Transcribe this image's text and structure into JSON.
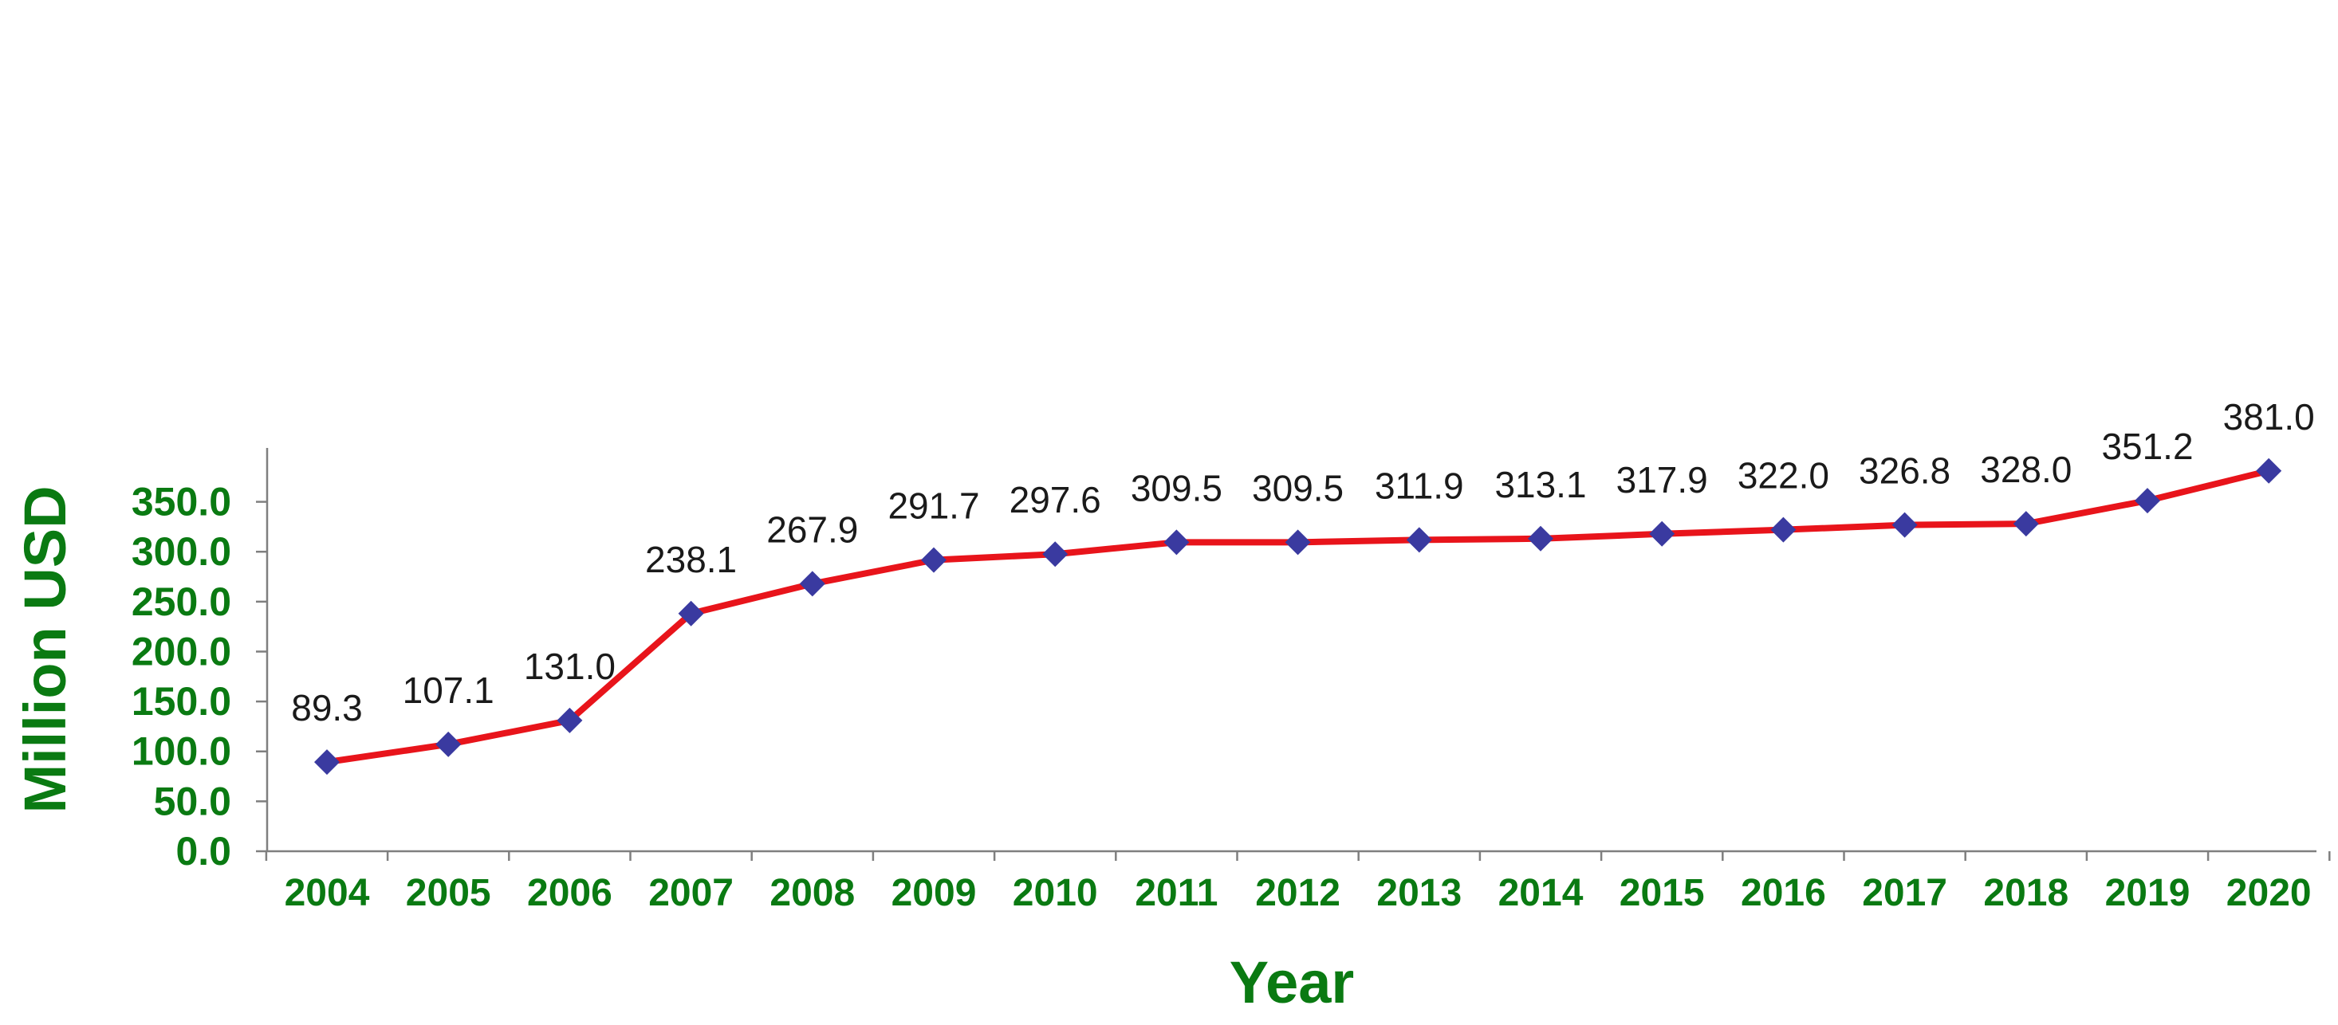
{
  "chart_data": {
    "type": "line",
    "title": "",
    "xlabel": "Year",
    "ylabel": "Million USD",
    "categories": [
      "2004",
      "2005",
      "2006",
      "2007",
      "2008",
      "2009",
      "2010",
      "2011",
      "2012",
      "2013",
      "2014",
      "2015",
      "2016",
      "2017",
      "2018",
      "2019",
      "2020"
    ],
    "series": [
      {
        "values": [
          89.3,
          107.1,
          131.0,
          238.1,
          267.9,
          291.7,
          297.6,
          309.5,
          309.5,
          311.9,
          313.1,
          317.9,
          322.0,
          326.8,
          328.0,
          351.2,
          381.0
        ],
        "data_labels": [
          "89.3",
          "107.1",
          "131.0",
          "238.1",
          "267.9",
          "291.7",
          "297.6",
          "309.5",
          "309.5",
          "311.9",
          "313.1",
          "317.9",
          "322.0",
          "326.8",
          "328.0",
          "351.2",
          "381.0"
        ],
        "line_color": "#e8141b",
        "marker_color": "#3a3aa0",
        "marker": "diamond"
      }
    ],
    "ylim": [
      0,
      400
    ],
    "yticks": [
      0,
      50,
      100,
      150,
      200,
      250,
      300,
      350
    ],
    "ytick_labels": [
      "0.0",
      "50.0",
      "100.0",
      "150.0",
      "200.0",
      "250.0",
      "300.0",
      "350.0"
    ],
    "grid": false,
    "legend": "none",
    "tick_label_color": "#0a7a12"
  }
}
